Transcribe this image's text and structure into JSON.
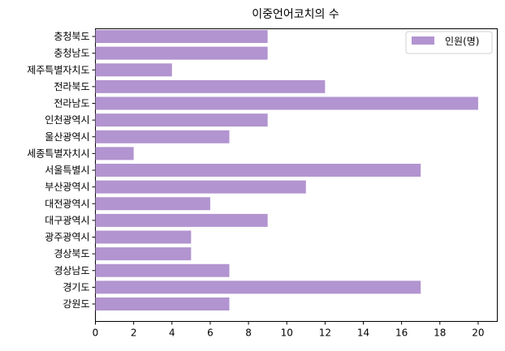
{
  "chart_data": {
    "type": "bar",
    "orientation": "horizontal",
    "title": "이중언어코치의 수",
    "xlabel": "",
    "ylabel": "",
    "categories": [
      "강원도",
      "경기도",
      "경상남도",
      "경상북도",
      "광주광역시",
      "대구광역시",
      "대전광역시",
      "부산광역시",
      "서울특별시",
      "세종특별자치시",
      "울산광역시",
      "인천광역시",
      "전라남도",
      "전라북도",
      "제주특별자치도",
      "충청남도",
      "충청북도"
    ],
    "series": [
      {
        "name": "인원(명)",
        "values": [
          7,
          17,
          7,
          5,
          5,
          9,
          6,
          11,
          17,
          2,
          7,
          9,
          20,
          12,
          4,
          9,
          9
        ],
        "color": "#b294d0"
      }
    ],
    "xlim": [
      0,
      21
    ],
    "xticks": [
      0,
      2,
      4,
      6,
      8,
      10,
      12,
      14,
      16,
      18,
      20
    ],
    "grid": false,
    "legend_position": "top-right"
  }
}
